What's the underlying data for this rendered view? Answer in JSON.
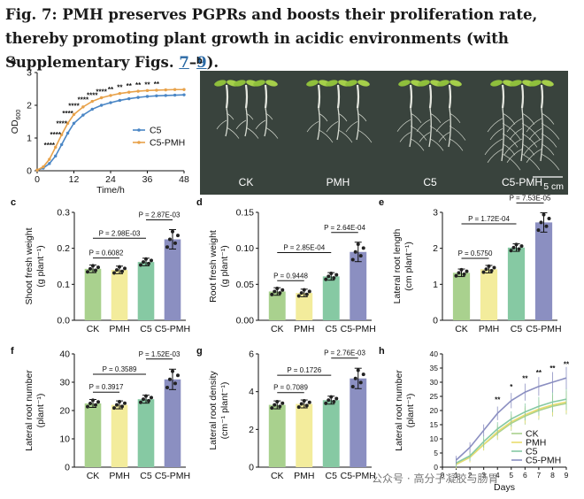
{
  "caption": {
    "prefix": "Fig. 7: PMH preserves PGPRs and boosts their proliferation rate, thereby promoting plant growth in acidic environments (with Supplementary Figs. ",
    "ref1": "7",
    "dash": "–",
    "ref2": "9",
    "suffix": ")."
  },
  "colors": {
    "CK": "#a9d18e",
    "PMH": "#f3ec9c",
    "C5": "#86c9a3",
    "C5-PMH": "#8b8fc1",
    "C5line": "#4a86c5",
    "C5PMHline": "#e8a24a"
  },
  "panels": {
    "a": "a",
    "b": "b",
    "c": "c",
    "d": "d",
    "e": "e",
    "f": "f",
    "g": "g",
    "h": "h"
  },
  "watermark": "公众号 · 高分子凝胶与肠胃",
  "chart_data": [
    {
      "id": "a",
      "type": "line",
      "xlabel": "Time/h",
      "ylabel": "OD600",
      "ylabel_main": "OD",
      "ylabel_sub": "600",
      "xlim": [
        0,
        48
      ],
      "ylim": [
        0,
        3
      ],
      "xticks": [
        "0",
        "12",
        "24",
        "36",
        "48"
      ],
      "yticks": [
        "0",
        "1",
        "2",
        "3"
      ],
      "x": [
        0,
        2,
        4,
        6,
        8,
        10,
        12,
        15,
        18,
        21,
        24,
        27,
        30,
        33,
        36,
        39,
        42,
        45,
        48
      ],
      "series": [
        {
          "name": "C5",
          "values": [
            0.02,
            0.08,
            0.22,
            0.45,
            0.8,
            1.15,
            1.45,
            1.7,
            1.88,
            2.0,
            2.08,
            2.15,
            2.2,
            2.24,
            2.27,
            2.29,
            2.3,
            2.31,
            2.32
          ]
        },
        {
          "name": "C5-PMH",
          "values": [
            0.02,
            0.12,
            0.35,
            0.72,
            1.1,
            1.45,
            1.72,
            1.95,
            2.12,
            2.23,
            2.3,
            2.36,
            2.4,
            2.43,
            2.45,
            2.46,
            2.47,
            2.48,
            2.48
          ]
        }
      ],
      "stars": [
        "****",
        "****",
        "****",
        "****",
        "****",
        "****",
        "****",
        "****",
        "**",
        "**",
        "**",
        "**",
        "**",
        "**"
      ],
      "legend": [
        "C5",
        "C5-PMH"
      ]
    },
    {
      "id": "b",
      "type": "image",
      "labels": [
        "CK",
        "PMH",
        "C5",
        "C5-PMH"
      ],
      "scale": "5 cm"
    },
    {
      "id": "c",
      "type": "bar",
      "ylabel": "Shoot fresh weight",
      "ylabel2": "(g plant⁻¹)",
      "categories": [
        "CK",
        "PMH",
        "C5",
        "C5-PMH"
      ],
      "values": [
        0.143,
        0.14,
        0.162,
        0.225
      ],
      "ylim": [
        0,
        0.3
      ],
      "yticks": [
        "0.0",
        "0.1",
        "0.2",
        "0.3"
      ],
      "pvals": [
        "P = 0.6082",
        "P = 2.98E-03",
        "P = 2.87E-03"
      ]
    },
    {
      "id": "d",
      "type": "bar",
      "ylabel": "Root fresh weight",
      "ylabel2": "(g plant⁻¹)",
      "categories": [
        "CK",
        "PMH",
        "C5",
        "C5-PMH"
      ],
      "values": [
        0.04,
        0.038,
        0.061,
        0.095
      ],
      "ylim": [
        0,
        0.15
      ],
      "yticks": [
        "0.00",
        "0.05",
        "0.10",
        "0.15"
      ],
      "pvals": [
        "P = 0.9448",
        "P = 2.85E-04",
        "P = 2.64E-04"
      ]
    },
    {
      "id": "e",
      "type": "bar",
      "ylabel": "Lateral root length",
      "ylabel2": "(cm plant⁻¹)",
      "categories": [
        "CK",
        "PMH",
        "C5",
        "C5-PMH"
      ],
      "values": [
        1.32,
        1.42,
        2.02,
        2.72
      ],
      "ylim": [
        0,
        3
      ],
      "yticks": [
        "0",
        "1",
        "2",
        "3"
      ],
      "pvals": [
        "P = 0.5750",
        "P = 1.72E-04",
        "P = 7.53E-05"
      ]
    },
    {
      "id": "f",
      "type": "bar",
      "ylabel": "Lateral root number",
      "ylabel2": "(plant⁻¹)",
      "categories": [
        "CK",
        "PMH",
        "C5",
        "C5-PMH"
      ],
      "values": [
        22.5,
        22,
        24,
        31
      ],
      "ylim": [
        0,
        40
      ],
      "yticks": [
        "0",
        "10",
        "20",
        "30",
        "40"
      ],
      "pvals": [
        "P = 0.3917",
        "P = 0.3589",
        "P = 1.52E-03"
      ]
    },
    {
      "id": "g",
      "type": "bar",
      "ylabel": "Lateral root density",
      "ylabel2": "(cm⁻¹ plant⁻¹)",
      "categories": [
        "CK",
        "PMH",
        "C5",
        "C5-PMH"
      ],
      "values": [
        3.3,
        3.35,
        3.55,
        4.7
      ],
      "ylim": [
        0,
        6
      ],
      "yticks": [
        "0",
        "2",
        "4",
        "6"
      ],
      "pvals": [
        "P = 0.7089",
        "P = 0.1726",
        "P = 2.76E-03"
      ]
    },
    {
      "id": "h",
      "type": "line",
      "xlabel": "Days",
      "ylabel": "Lateral root number",
      "ylabel2": "(plant⁻¹)",
      "xlim": [
        0,
        9
      ],
      "ylim": [
        0,
        40
      ],
      "xticks": [
        "0",
        "1",
        "2",
        "3",
        "4",
        "5",
        "6",
        "7",
        "8",
        "9"
      ],
      "yticks": [
        "0",
        "5",
        "10",
        "15",
        "20",
        "25",
        "30",
        "35",
        "40"
      ],
      "x": [
        1,
        2,
        3,
        4,
        5,
        6,
        7,
        8,
        9
      ],
      "series": [
        {
          "name": "CK",
          "values": [
            1,
            3.5,
            8,
            12,
            15.5,
            18,
            20,
            21.5,
            22.5
          ]
        },
        {
          "name": "PMH",
          "values": [
            1,
            3.5,
            8,
            12.5,
            16,
            18.5,
            20.5,
            22,
            23
          ]
        },
        {
          "name": "C5",
          "values": [
            1.5,
            4,
            9,
            13.5,
            17,
            19.5,
            21.5,
            23,
            24
          ]
        },
        {
          "name": "C5-PMH",
          "values": [
            2.5,
            7,
            13,
            19,
            23.5,
            26.5,
            28.5,
            30,
            31.5
          ]
        }
      ],
      "stars": [
        "**",
        "*",
        "**",
        "**",
        "**",
        "**"
      ],
      "legend": [
        "CK",
        "PMH",
        "C5",
        "C5-PMH"
      ]
    }
  ]
}
